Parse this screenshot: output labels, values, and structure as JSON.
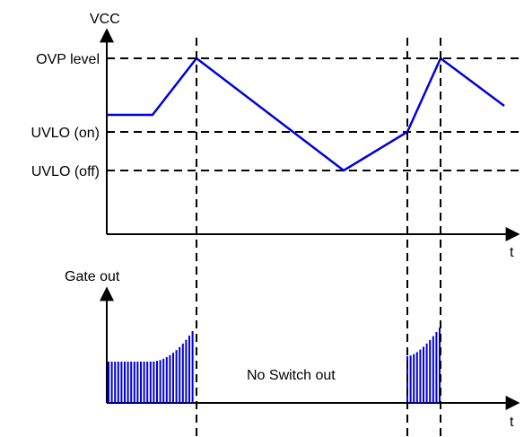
{
  "top_plot": {
    "y_axis_label": "VCC",
    "x_axis_label": "t",
    "levels": {
      "ovp": "OVP level",
      "uvlo_on": "UVLO (on)",
      "uvlo_off": "UVLO (off)"
    }
  },
  "bottom_plot": {
    "y_axis_label": "Gate out",
    "x_axis_label": "t",
    "annotation": "No Switch out"
  },
  "colors": {
    "waveform": "#0000dd",
    "lines": "#000000",
    "pulses": "#0000dd"
  }
}
